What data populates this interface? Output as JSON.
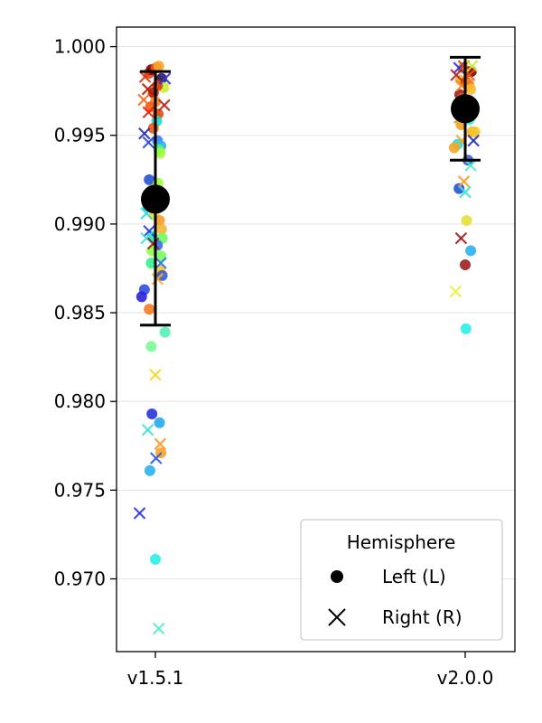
{
  "chart_data": {
    "type": "scatter",
    "xlabel": "",
    "ylabel": "",
    "categories": [
      "v1.5.1",
      "v2.0.0"
    ],
    "ylim": [
      0.9659,
      1.0011
    ],
    "yticks": [
      "0.970",
      "0.975",
      "0.980",
      "0.985",
      "0.990",
      "0.995",
      "1.000"
    ],
    "ytick_values": [
      0.97,
      0.975,
      0.98,
      0.985,
      0.99,
      0.995,
      1.0
    ],
    "grid": "horizontal",
    "legend": {
      "title": "Hemisphere",
      "placement": "lower-right",
      "entries": [
        {
          "label": "Left (L)",
          "marker": "circle"
        },
        {
          "label": "Right (R)",
          "marker": "x"
        }
      ]
    },
    "summary": [
      {
        "category": "v1.5.1",
        "mean": 0.9914,
        "lower": 0.9843,
        "upper": 0.9986
      },
      {
        "category": "v2.0.0",
        "mean": 0.9965,
        "lower": 0.9936,
        "upper": 0.9994
      }
    ],
    "points": [
      {
        "c": 0,
        "dx": -0.18,
        "y": 0.9985,
        "m": "o",
        "color": "#e8411a"
      },
      {
        "c": 0,
        "dx": -0.12,
        "y": 0.9987,
        "m": "o",
        "color": "#7a0403"
      },
      {
        "c": 0,
        "dx": 0.02,
        "y": 0.9988,
        "m": "o",
        "color": "#f2531f"
      },
      {
        "c": 0,
        "dx": 0.1,
        "y": 0.9989,
        "m": "o",
        "color": "#f9a429"
      },
      {
        "c": 0,
        "dx": 0.18,
        "y": 0.9982,
        "m": "o",
        "color": "#30123b"
      },
      {
        "c": 0,
        "dx": 0.25,
        "y": 0.9977,
        "m": "o",
        "color": "#c8ef34"
      },
      {
        "c": 0,
        "dx": 0.06,
        "y": 0.9978,
        "m": "o",
        "color": "#dd3d08"
      },
      {
        "c": 0,
        "dx": -0.06,
        "y": 0.9974,
        "m": "o",
        "color": "#b21a00"
      },
      {
        "c": 0,
        "dx": 0.0,
        "y": 0.9969,
        "m": "o",
        "color": "#fb8022"
      },
      {
        "c": 0,
        "dx": -0.14,
        "y": 0.9966,
        "m": "o",
        "color": "#ef5a11"
      },
      {
        "c": 0,
        "dx": 0.08,
        "y": 0.9962,
        "m": "o",
        "color": "#e4460a"
      },
      {
        "c": 0,
        "dx": 0.04,
        "y": 0.9958,
        "m": "o",
        "color": "#21d8d0"
      },
      {
        "c": 0,
        "dx": -0.06,
        "y": 0.9954,
        "m": "o",
        "color": "#ef5911"
      },
      {
        "c": 0,
        "dx": 0.06,
        "y": 0.9947,
        "m": "o",
        "color": "#3e7bf9"
      },
      {
        "c": 0,
        "dx": 0.16,
        "y": 0.9944,
        "m": "o",
        "color": "#2ab0f3"
      },
      {
        "c": 0,
        "dx": 0.1,
        "y": 0.9942,
        "m": "o",
        "color": "#46f884"
      },
      {
        "c": 0,
        "dx": 0.14,
        "y": 0.994,
        "m": "o",
        "color": "#a4fc3c"
      },
      {
        "c": 0,
        "dx": -0.18,
        "y": 0.9925,
        "m": "o",
        "color": "#2153d6"
      },
      {
        "c": 0,
        "dx": 0.08,
        "y": 0.9923,
        "m": "o",
        "color": "#a2fc3c"
      },
      {
        "c": 0,
        "dx": -0.12,
        "y": 0.9919,
        "m": "o",
        "color": "#fabb2a"
      },
      {
        "c": 0,
        "dx": -0.22,
        "y": 0.991,
        "m": "o",
        "color": "#1fd8c3"
      },
      {
        "c": 0,
        "dx": -0.04,
        "y": 0.9905,
        "m": "o",
        "color": "#e8e038"
      },
      {
        "c": 0,
        "dx": 0.12,
        "y": 0.9902,
        "m": "o",
        "color": "#fa9b2a"
      },
      {
        "c": 0,
        "dx": 0.18,
        "y": 0.9897,
        "m": "o",
        "color": "#f2b735"
      },
      {
        "c": 0,
        "dx": -0.08,
        "y": 0.9893,
        "m": "o",
        "color": "#26e8ba"
      },
      {
        "c": 0,
        "dx": 0.2,
        "y": 0.9892,
        "m": "o",
        "color": "#6dfb62"
      },
      {
        "c": 0,
        "dx": 0.06,
        "y": 0.9888,
        "m": "o",
        "color": "#3e6cf2"
      },
      {
        "c": 0,
        "dx": -0.1,
        "y": 0.9885,
        "m": "o",
        "color": "#94fd46"
      },
      {
        "c": 0,
        "dx": 0.16,
        "y": 0.9882,
        "m": "o",
        "color": "#78fd58"
      },
      {
        "c": 0,
        "dx": -0.12,
        "y": 0.9878,
        "m": "o",
        "color": "#35f28c"
      },
      {
        "c": 0,
        "dx": 0.14,
        "y": 0.9874,
        "m": "o",
        "color": "#f8c72b"
      },
      {
        "c": 0,
        "dx": 0.2,
        "y": 0.9871,
        "m": "o",
        "color": "#3b5bd0"
      },
      {
        "c": 0,
        "dx": -0.32,
        "y": 0.9863,
        "m": "o",
        "color": "#2f4de3"
      },
      {
        "c": 0,
        "dx": -0.4,
        "y": 0.9859,
        "m": "o",
        "color": "#2a23d8"
      },
      {
        "c": 0,
        "dx": -0.18,
        "y": 0.9852,
        "m": "o",
        "color": "#f57c22"
      },
      {
        "c": 0,
        "dx": -0.12,
        "y": 0.9831,
        "m": "o",
        "color": "#79fb98"
      },
      {
        "c": 0,
        "dx": 0.28,
        "y": 0.9839,
        "m": "o",
        "color": "#55f0b6"
      },
      {
        "c": 0,
        "dx": -0.1,
        "y": 0.9793,
        "m": "o",
        "color": "#2a34d6"
      },
      {
        "c": 0,
        "dx": 0.12,
        "y": 0.9788,
        "m": "o",
        "color": "#23a8f1"
      },
      {
        "c": 0,
        "dx": 0.16,
        "y": 0.9771,
        "m": "o",
        "color": "#f9a229"
      },
      {
        "c": 0,
        "dx": -0.16,
        "y": 0.9761,
        "m": "o",
        "color": "#2bb0f0"
      },
      {
        "c": 0,
        "dx": 0.0,
        "y": 0.9711,
        "m": "o",
        "color": "#2bf0e4"
      },
      {
        "c": 0,
        "dx": -0.3,
        "y": 0.9983,
        "m": "x",
        "color": "#dd3a10"
      },
      {
        "c": 0,
        "dx": -0.22,
        "y": 0.9976,
        "m": "x",
        "color": "#b71c05"
      },
      {
        "c": 0,
        "dx": 0.28,
        "y": 0.9982,
        "m": "x",
        "color": "#2d35e0"
      },
      {
        "c": 0,
        "dx": -0.34,
        "y": 0.997,
        "m": "x",
        "color": "#f36a13"
      },
      {
        "c": 0,
        "dx": -0.2,
        "y": 0.9963,
        "m": "x",
        "color": "#e4230c"
      },
      {
        "c": 0,
        "dx": 0.26,
        "y": 0.9967,
        "m": "x",
        "color": "#b52222"
      },
      {
        "c": 0,
        "dx": -0.32,
        "y": 0.9951,
        "m": "x",
        "color": "#2a2fbe"
      },
      {
        "c": 0,
        "dx": -0.2,
        "y": 0.9946,
        "m": "x",
        "color": "#2848e0"
      },
      {
        "c": 0,
        "dx": -0.26,
        "y": 0.9906,
        "m": "x",
        "color": "#2bd9e7"
      },
      {
        "c": 0,
        "dx": -0.18,
        "y": 0.9896,
        "m": "x",
        "color": "#2f3ae0"
      },
      {
        "c": 0,
        "dx": -0.26,
        "y": 0.9892,
        "m": "x",
        "color": "#3ce3dd"
      },
      {
        "c": 0,
        "dx": -0.06,
        "y": 0.9889,
        "m": "x",
        "color": "#a01f1f"
      },
      {
        "c": 0,
        "dx": 0.16,
        "y": 0.9878,
        "m": "x",
        "color": "#2a78f0"
      },
      {
        "c": 0,
        "dx": 0.06,
        "y": 0.9869,
        "m": "x",
        "color": "#fbb02a"
      },
      {
        "c": 0,
        "dx": 0.0,
        "y": 0.9815,
        "m": "x",
        "color": "#fbd52a"
      },
      {
        "c": 0,
        "dx": -0.22,
        "y": 0.9784,
        "m": "x",
        "color": "#3de3d6"
      },
      {
        "c": 0,
        "dx": 0.14,
        "y": 0.9776,
        "m": "x",
        "color": "#fa9a2a"
      },
      {
        "c": 0,
        "dx": 0.02,
        "y": 0.9768,
        "m": "x",
        "color": "#2f5ae6"
      },
      {
        "c": 0,
        "dx": -0.46,
        "y": 0.9737,
        "m": "x",
        "color": "#2d3ae0"
      },
      {
        "c": 0,
        "dx": 0.1,
        "y": 0.9672,
        "m": "x",
        "color": "#4ff0c8"
      },
      {
        "c": 1,
        "dx": -0.06,
        "y": 0.9988,
        "m": "o",
        "color": "#f49024"
      },
      {
        "c": 1,
        "dx": 0.08,
        "y": 0.9986,
        "m": "o",
        "color": "#e4460a"
      },
      {
        "c": 1,
        "dx": 0.18,
        "y": 0.9986,
        "m": "o",
        "color": "#7a0403"
      },
      {
        "c": 1,
        "dx": -0.14,
        "y": 0.9981,
        "m": "o",
        "color": "#f2b735"
      },
      {
        "c": 1,
        "dx": 0.02,
        "y": 0.998,
        "m": "o",
        "color": "#dd3d08"
      },
      {
        "c": 1,
        "dx": 0.1,
        "y": 0.9979,
        "m": "o",
        "color": "#fb8022"
      },
      {
        "c": 1,
        "dx": 0.16,
        "y": 0.9976,
        "m": "o",
        "color": "#fabb2a"
      },
      {
        "c": 1,
        "dx": -0.16,
        "y": 0.9973,
        "m": "o",
        "color": "#a01f1f"
      },
      {
        "c": 1,
        "dx": -0.08,
        "y": 0.9971,
        "m": "o",
        "color": "#ef5911"
      },
      {
        "c": 1,
        "dx": 0.06,
        "y": 0.9969,
        "m": "o",
        "color": "#fbb12a"
      },
      {
        "c": 1,
        "dx": -0.04,
        "y": 0.9962,
        "m": "o",
        "color": "#30123b"
      },
      {
        "c": 1,
        "dx": 0.12,
        "y": 0.9959,
        "m": "o",
        "color": "#2bf0e4"
      },
      {
        "c": 1,
        "dx": -0.12,
        "y": 0.9956,
        "m": "o",
        "color": "#f0a51f"
      },
      {
        "c": 1,
        "dx": 0.2,
        "y": 0.9952,
        "m": "o",
        "color": "#f5b32a"
      },
      {
        "c": 1,
        "dx": -0.22,
        "y": 0.9945,
        "m": "o",
        "color": "#2bd9e7"
      },
      {
        "c": 1,
        "dx": -0.32,
        "y": 0.9943,
        "m": "o",
        "color": "#f5a623"
      },
      {
        "c": 1,
        "dx": 0.28,
        "y": 0.9952,
        "m": "o",
        "color": "#f8c72b"
      },
      {
        "c": 1,
        "dx": 0.08,
        "y": 0.9936,
        "m": "o",
        "color": "#3b5bd0"
      },
      {
        "c": 1,
        "dx": -0.18,
        "y": 0.992,
        "m": "o",
        "color": "#2153d6"
      },
      {
        "c": 1,
        "dx": 0.04,
        "y": 0.9902,
        "m": "o",
        "color": "#e8e038"
      },
      {
        "c": 1,
        "dx": 0.16,
        "y": 0.9885,
        "m": "o",
        "color": "#2ab0f3"
      },
      {
        "c": 1,
        "dx": 0.0,
        "y": 0.9877,
        "m": "o",
        "color": "#a01f1f"
      },
      {
        "c": 1,
        "dx": 0.02,
        "y": 0.9841,
        "m": "o",
        "color": "#2bf0e4"
      },
      {
        "c": 1,
        "dx": -0.18,
        "y": 0.9988,
        "m": "x",
        "color": "#2d35e0"
      },
      {
        "c": 1,
        "dx": -0.04,
        "y": 0.9989,
        "m": "x",
        "color": "#e4460a"
      },
      {
        "c": 1,
        "dx": 0.2,
        "y": 0.9989,
        "m": "x",
        "color": "#c8ef34"
      },
      {
        "c": 1,
        "dx": -0.26,
        "y": 0.9984,
        "m": "x",
        "color": "#b52222"
      },
      {
        "c": 1,
        "dx": 0.12,
        "y": 0.9984,
        "m": "x",
        "color": "#ef5a11"
      },
      {
        "c": 1,
        "dx": -0.1,
        "y": 0.9978,
        "m": "x",
        "color": "#fb8022"
      },
      {
        "c": 1,
        "dx": 0.04,
        "y": 0.9969,
        "m": "x",
        "color": "#2a78f0"
      },
      {
        "c": 1,
        "dx": -0.16,
        "y": 0.996,
        "m": "x",
        "color": "#f49024"
      },
      {
        "c": 1,
        "dx": 0.24,
        "y": 0.9947,
        "m": "x",
        "color": "#2a2fbe"
      },
      {
        "c": 1,
        "dx": -0.1,
        "y": 0.9947,
        "m": "x",
        "color": "#f5a623"
      },
      {
        "c": 1,
        "dx": 0.16,
        "y": 0.9933,
        "m": "x",
        "color": "#4ff0c8"
      },
      {
        "c": 1,
        "dx": -0.04,
        "y": 0.9924,
        "m": "x",
        "color": "#f9a229"
      },
      {
        "c": 1,
        "dx": 0.0,
        "y": 0.9918,
        "m": "x",
        "color": "#3de3d6"
      },
      {
        "c": 1,
        "dx": -0.12,
        "y": 0.9892,
        "m": "x",
        "color": "#a01f1f"
      },
      {
        "c": 1,
        "dx": -0.28,
        "y": 0.9862,
        "m": "x",
        "color": "#e8f23a"
      }
    ]
  }
}
